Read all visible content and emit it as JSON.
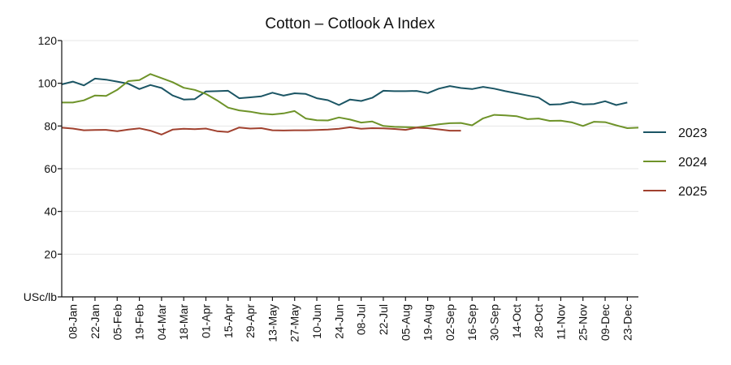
{
  "chart_data": {
    "type": "line",
    "title": "Cotton – Cotlook A Index",
    "ylabel": "USc/lb",
    "xlabel": "",
    "ylim": [
      0,
      120
    ],
    "y_ticks": [
      "",
      "20",
      "40",
      "60",
      "80",
      "100",
      "120"
    ],
    "y_tick_values": [
      0,
      20,
      40,
      60,
      80,
      100,
      120
    ],
    "x_tick_labels": [
      "08-Jan",
      "22-Jan",
      "05-Feb",
      "19-Feb",
      "04-Mar",
      "18-Mar",
      "01-Apr",
      "15-Apr",
      "29-Apr",
      "13-May",
      "27-May",
      "10-Jun",
      "24-Jun",
      "08-Jul",
      "22-Jul",
      "05-Aug",
      "19-Aug",
      "02-Sep",
      "16-Sep",
      "30-Sep",
      "14-Oct",
      "28-Oct",
      "11-Nov",
      "25-Nov",
      "09-Dec",
      "23-Dec"
    ],
    "x_tick_week_index": [
      1,
      3,
      5,
      7,
      9,
      11,
      13,
      15,
      17,
      19,
      21,
      23,
      25,
      27,
      29,
      31,
      33,
      35,
      37,
      39,
      41,
      43,
      45,
      47,
      49,
      51
    ],
    "x_range_weeks": [
      0,
      52
    ],
    "grid": true,
    "legend_position": "right",
    "series": [
      {
        "name": "2023",
        "color": "#1b5564",
        "values": [
          99.5,
          100.8,
          99.0,
          102.2,
          101.7,
          100.8,
          99.8,
          97.3,
          99.2,
          97.8,
          94.3,
          92.4,
          92.6,
          96.2,
          96.3,
          96.5,
          93.0,
          93.4,
          93.9,
          95.6,
          94.2,
          95.3,
          95.0,
          93.0,
          92.1,
          89.8,
          92.4,
          91.7,
          93.2,
          96.5,
          96.3,
          96.3,
          96.4,
          95.4,
          97.5,
          98.7,
          97.8,
          97.3,
          98.3,
          97.5,
          96.3,
          95.3,
          94.3,
          93.3,
          90.0,
          90.2,
          91.3,
          90.1,
          90.3,
          91.6,
          89.8,
          91.0
        ]
      },
      {
        "name": "2024",
        "color": "#6e9329",
        "values": [
          91.0,
          91.0,
          92.0,
          94.3,
          94.1,
          96.9,
          101.0,
          101.5,
          104.3,
          102.4,
          100.5,
          97.9,
          96.9,
          95.0,
          92.0,
          88.6,
          87.3,
          86.7,
          85.8,
          85.4,
          85.9,
          87.0,
          83.5,
          82.7,
          82.6,
          84.0,
          83.0,
          81.6,
          82.1,
          80.0,
          79.6,
          79.5,
          79.3,
          80.0,
          80.8,
          81.3,
          81.4,
          80.3,
          83.6,
          85.2,
          85.0,
          84.6,
          83.2,
          83.5,
          82.4,
          82.5,
          81.7,
          80.0,
          82.0,
          81.8,
          80.3,
          79.0,
          79.2
        ]
      },
      {
        "name": "2025",
        "color": "#a0402e",
        "values": [
          79.2,
          78.8,
          78.0,
          78.1,
          78.2,
          77.6,
          78.3,
          78.9,
          77.8,
          76.0,
          78.3,
          78.7,
          78.5,
          78.8,
          77.6,
          77.2,
          79.3,
          78.8,
          79.0,
          78.0,
          77.9,
          78.0,
          78.0,
          78.1,
          78.3,
          78.7,
          79.4,
          78.7,
          79.0,
          78.9,
          78.6,
          78.2,
          79.2,
          79.0,
          78.4,
          77.8,
          77.8
        ]
      }
    ]
  }
}
